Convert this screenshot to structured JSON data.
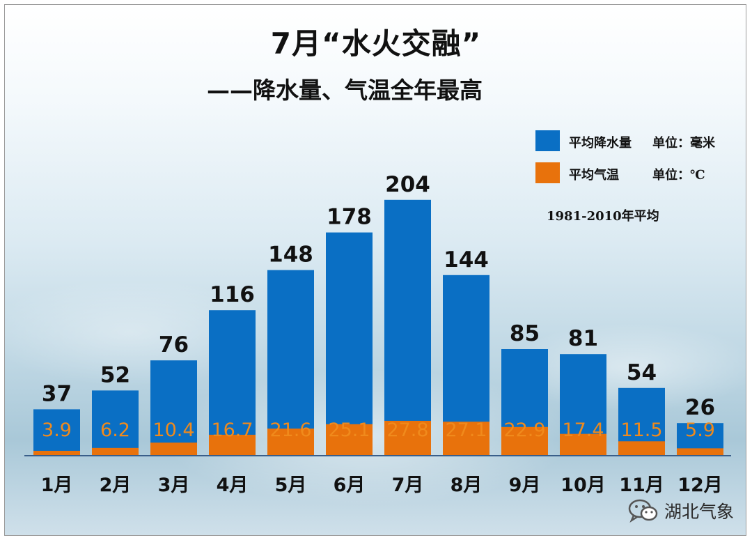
{
  "title": "7月“水火交融”",
  "subtitle": "——降水量、气温全年最高",
  "legend": [
    {
      "label": "平均降水量",
      "unit": "单位：毫米",
      "color": "#0a6fc4"
    },
    {
      "label": "平均气温",
      "unit": "单位：℃",
      "color": "#e8720c"
    }
  ],
  "note": "1981-2010年平均",
  "brand": {
    "name": "湖北气象",
    "icon": "wechat-icon"
  },
  "chart_data": {
    "type": "bar",
    "categories": [
      "1月",
      "2月",
      "3月",
      "4月",
      "5月",
      "6月",
      "7月",
      "8月",
      "9月",
      "10月",
      "11月",
      "12月"
    ],
    "series": [
      {
        "name": "平均降水量",
        "unit": "毫米",
        "color": "#0a6fc4",
        "values": [
          37,
          52,
          76,
          116,
          148,
          178,
          204,
          144,
          85,
          81,
          54,
          26
        ]
      },
      {
        "name": "平均气温",
        "unit": "℃",
        "color": "#e8720c",
        "values": [
          3.9,
          6.2,
          10.4,
          16.7,
          21.6,
          25.1,
          27.8,
          27.1,
          22.9,
          17.4,
          11.5,
          5.9
        ]
      }
    ],
    "bar_mode": "overlay",
    "grid": false,
    "legend_position": "top-right"
  }
}
